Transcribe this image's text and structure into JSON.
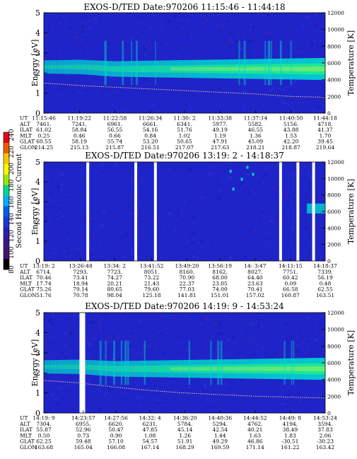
{
  "colorbar": {
    "label": "Second Harmonic Current",
    "ticks": [
      "240",
      "220",
      "200",
      "180",
      "160",
      "140",
      "120",
      "100",
      "80"
    ],
    "colors": [
      "#e8001a",
      "#f05a00",
      "#f5c800",
      "#f8f800",
      "#9de800",
      "#00d890",
      "#00b0ff",
      "#0060e8",
      "#1838d8",
      "#2a1fb0",
      "#3a1888",
      "#401870",
      "#000000"
    ]
  },
  "panel_colors": {
    "background": "#1f24c8",
    "band": "#00d8d0",
    "core": "#20e890",
    "peak": "#9cf060",
    "noise": "#b02060",
    "temp_line": "#f0c0a0"
  },
  "chart_data": [
    {
      "type": "heatmap",
      "title": "EXOS-D/TED   Date:970206  11:15:46 - 11:44:18",
      "ylabel": "Energy [eV]",
      "y2label": "Temperature [K]",
      "ylim": [
        0,
        5
      ],
      "y2lim": [
        0,
        12000
      ],
      "yticks": [
        "0",
        "1",
        "2",
        "3",
        "4",
        "5"
      ],
      "y2ticks": [
        "0",
        "2000",
        "4000",
        "6000",
        "8000",
        "10000",
        "12000"
      ],
      "band_center_ev": [
        2.3,
        2.3,
        2.2,
        2.2,
        2.2,
        2.2,
        2.2,
        2.2,
        2.2
      ],
      "temperature_k": [
        3600,
        3300,
        3100,
        2900,
        2700,
        2500,
        2300,
        2000,
        1900
      ],
      "gaps": [],
      "orbit_table": {
        "labels": [
          "UT",
          "ALT",
          "ILAT",
          "MLT",
          "GLAT",
          "GLON"
        ],
        "columns": [
          [
            "11:15:46",
            "7461.",
            "61.02",
            "0.25",
            "60.55",
            "214.25"
          ],
          [
            "11:19:22",
            "7241.",
            "58.84",
            "0.46",
            "58.19",
            "215.13"
          ],
          [
            "11:22:58",
            "6961.",
            "56.55",
            "0.66",
            "55.74",
            "215.87"
          ],
          [
            "11:26:34",
            "6661.",
            "54.16",
            "0.84",
            "53.20",
            "216.51"
          ],
          [
            "11:30: 2",
            "6341.",
            "51.76",
            "1.02",
            "50.65",
            "217.07"
          ],
          [
            "11:33:38",
            "5977.",
            "49.19",
            "1.19",
            "47.91",
            "217.63"
          ],
          [
            "11:37:14",
            "5582.",
            "46.55",
            "1.36",
            "45.09",
            "218.21"
          ],
          [
            "11:40:50",
            "5156.",
            "43.88",
            "1.53",
            "42.20",
            "218.87"
          ],
          [
            "11:44:18",
            "4718.",
            "41.37",
            "1.70",
            "39.45",
            "219.64"
          ]
        ]
      }
    },
    {
      "type": "heatmap",
      "title": "EXOS-D/TED   Date:970206  13:19: 2 - 14:18:37",
      "ylabel": "Energy [eV]",
      "y2label": "Temperature [K]",
      "ylim": [
        0,
        5
      ],
      "y2lim": [
        0,
        12000
      ],
      "yticks": [
        "0",
        "1",
        "2",
        "3",
        "4",
        "5"
      ],
      "y2ticks": [
        "0",
        "2000",
        "4000",
        "6000",
        "8000",
        "10000",
        "12000"
      ],
      "band_center_ev": [],
      "temperature_k": [],
      "gaps": [
        "13:28:20",
        "13:38:30",
        "13:42:40",
        "14:09:10",
        "14:12:50",
        "14:16:10"
      ],
      "orbit_table": {
        "labels": [
          "UT",
          "ALT",
          "ILAT",
          "MLT",
          "GLAT",
          "GLON"
        ],
        "columns": [
          [
            "13:19: 2",
            "6714.",
            "70.46",
            "17.74",
            "75.26",
            "51.76"
          ],
          [
            "13:26:48",
            "7293.",
            "73.41",
            "18.94",
            "79.14",
            "70.78"
          ],
          [
            "13:34: 2",
            "7723.",
            "74.27",
            "20.21",
            "80.65",
            "98.04"
          ],
          [
            "13:41:52",
            "8051.",
            "73.22",
            "21.43",
            "79.60",
            "125.18"
          ],
          [
            "13:49:20",
            "8160.",
            "70.90",
            "22.37",
            "77.03",
            "141.81"
          ],
          [
            "13:56:19",
            "8162.",
            "68.00",
            "23.05",
            "74.00",
            "151.01"
          ],
          [
            "14: 3:47",
            "8027.",
            "64.40",
            "23.63",
            "70.41",
            "157.02"
          ],
          [
            "14:11:15",
            "7751.",
            "60.42",
            "0.09",
            "66.58",
            "160.87"
          ],
          [
            "14:18:37",
            "7339.",
            "56.19",
            "0.48",
            "62.55",
            "163.51"
          ]
        ]
      }
    },
    {
      "type": "heatmap",
      "title": "EXOS-D/TED   Date:970206  14:19: 9 - 14:53:24",
      "ylabel": "Energy [eV]",
      "y2label": "Temperature [K]",
      "ylim": [
        0,
        5
      ],
      "y2lim": [
        0,
        12000
      ],
      "yticks": [
        "0",
        "1",
        "2",
        "3",
        "4",
        "5"
      ],
      "y2ticks": [
        "0",
        "2000",
        "4000",
        "6000",
        "8000",
        "10000",
        "12000"
      ],
      "band_center_ev": [
        2.3,
        2.3,
        2.2,
        2.2,
        2.2,
        2.2,
        2.2,
        2.2,
        2.2
      ],
      "temperature_k": [
        3900,
        3600,
        3100,
        2700,
        2400,
        2200,
        2000,
        1900,
        1800
      ],
      "gaps": [
        "14:23:40"
      ],
      "orbit_table": {
        "labels": [
          "UT",
          "ALT",
          "ILAT",
          "MLT",
          "GLAT",
          "GLON"
        ],
        "columns": [
          [
            "14:19: 9",
            "7304.",
            "55.87",
            "0.50",
            "62.25",
            "163.68"
          ],
          [
            "14:23:57",
            "6955.",
            "52.96",
            "0.73",
            "59.48",
            "165.04"
          ],
          [
            "14:27:56",
            "6620.",
            "50.47",
            "0.90",
            "57.10",
            "166.08"
          ],
          [
            "14:32: 4",
            "6231.",
            "47.85",
            "1.08",
            "54.57",
            "167.14"
          ],
          [
            "14:36:20",
            "5784.",
            "45.14",
            "1.26",
            "51.91",
            "168.29"
          ],
          [
            "14:40:36",
            "5294.",
            "42.54",
            "1.44",
            "49.29",
            "169.59"
          ],
          [
            "14:44:52",
            "4762.",
            "40.21",
            "1.63",
            "46.86",
            "171.14"
          ],
          [
            "14:49: 8",
            "4194.",
            "38.49",
            "1.83",
            "-30.51",
            "161.22"
          ],
          [
            "14:53:24",
            "3594.",
            "37.83",
            "2.06",
            "-30.23",
            "163.42"
          ]
        ]
      }
    }
  ]
}
